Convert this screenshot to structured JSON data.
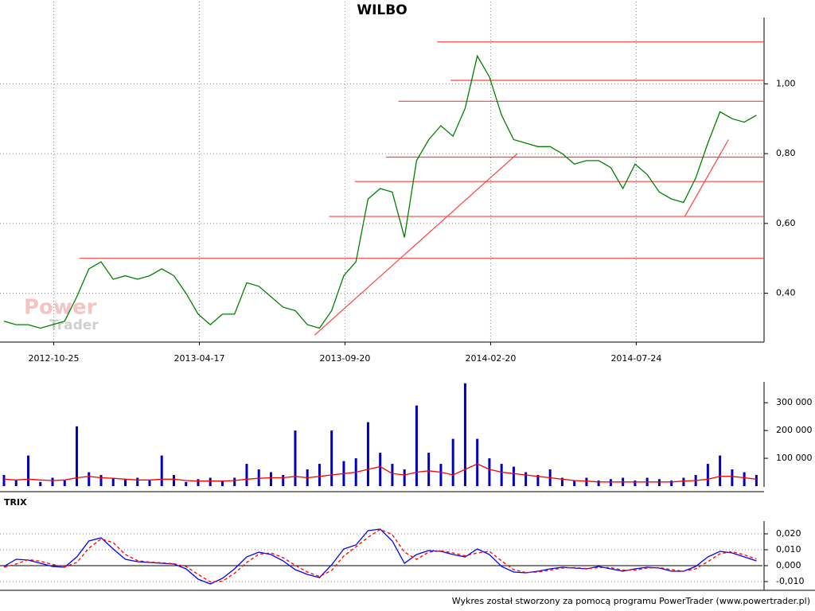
{
  "chart_data": [
    {
      "type": "line",
      "title": "WILBO",
      "watermark": [
        "Power",
        "Trader"
      ],
      "x": [
        0,
        10,
        20,
        30,
        40,
        50,
        60,
        70,
        80,
        90,
        100,
        110,
        120,
        130,
        140,
        150,
        160,
        170,
        180,
        190,
        200,
        210,
        220,
        230,
        240,
        250,
        260,
        270,
        280,
        290,
        300,
        310,
        320,
        330,
        340,
        350,
        360,
        370,
        380,
        390,
        400,
        410,
        420,
        430,
        440,
        450,
        460,
        470,
        480,
        490,
        500,
        510,
        520,
        530,
        540,
        550,
        560,
        570,
        580,
        590,
        600,
        610,
        620
      ],
      "xlim": [
        0,
        625
      ],
      "xticks": [
        {
          "value": 41,
          "label": "2012-10-25"
        },
        {
          "value": 161,
          "label": "2013-04-17"
        },
        {
          "value": 281,
          "label": "2013-09-20"
        },
        {
          "value": 401,
          "label": "2014-02-20"
        },
        {
          "value": 521,
          "label": "2014-07-24"
        }
      ],
      "ylim": [
        0.26,
        1.19
      ],
      "yticks": [
        {
          "value": 0.4,
          "label": "0,40"
        },
        {
          "value": 0.6,
          "label": "0,60"
        },
        {
          "value": 0.8,
          "label": "0,80"
        },
        {
          "value": 1.0,
          "label": "1,00"
        }
      ],
      "grid": true,
      "series": [
        {
          "color": "#008000",
          "values": [
            0.32,
            0.31,
            0.31,
            0.3,
            0.31,
            0.32,
            0.39,
            0.47,
            0.49,
            0.44,
            0.45,
            0.44,
            0.45,
            0.47,
            0.45,
            0.4,
            0.34,
            0.31,
            0.34,
            0.34,
            0.43,
            0.42,
            0.39,
            0.36,
            0.35,
            0.31,
            0.3,
            0.35,
            0.45,
            0.49,
            0.67,
            0.7,
            0.69,
            0.56,
            0.78,
            0.84,
            0.88,
            0.85,
            0.93,
            1.08,
            1.02,
            0.91,
            0.84,
            0.83,
            0.82,
            0.82,
            0.8,
            0.77,
            0.78,
            0.78,
            0.76,
            0.7,
            0.77,
            0.74,
            0.69,
            0.67,
            0.66,
            0.73,
            0.83,
            0.92,
            0.9,
            0.89,
            0.91
          ]
        }
      ],
      "level_color": "#ff4040",
      "levels": [
        {
          "value": 1.12,
          "x_start": 357
        },
        {
          "value": 1.01,
          "x_start": 368
        },
        {
          "value": 0.95,
          "x_start": 325
        },
        {
          "value": 0.79,
          "x_start": 315
        },
        {
          "value": 0.72,
          "x_start": 289
        },
        {
          "value": 0.62,
          "x_start": 268
        },
        {
          "value": 0.5,
          "x_start": 62
        }
      ],
      "trend_lines": [
        {
          "x": [
            256,
            423
          ],
          "values": [
            0.28,
            0.8
          ]
        },
        {
          "x": [
            561,
            597
          ],
          "values": [
            0.62,
            0.84
          ]
        }
      ]
    },
    {
      "type": "bar",
      "x": [
        0,
        10,
        20,
        30,
        40,
        50,
        60,
        70,
        80,
        90,
        100,
        110,
        120,
        130,
        140,
        150,
        160,
        170,
        180,
        190,
        200,
        210,
        220,
        230,
        240,
        250,
        260,
        270,
        280,
        290,
        300,
        310,
        320,
        330,
        340,
        350,
        360,
        370,
        380,
        390,
        400,
        410,
        420,
        430,
        440,
        450,
        460,
        470,
        480,
        490,
        500,
        510,
        520,
        530,
        540,
        550,
        560,
        570,
        580,
        590,
        600,
        610,
        620
      ],
      "xlim": [
        0,
        625
      ],
      "ylim": [
        0,
        375000
      ],
      "yticks": [
        {
          "value": 100000,
          "label": "100 000"
        },
        {
          "value": 200000,
          "label": "200 000"
        },
        {
          "value": 300000,
          "label": "300 000"
        }
      ],
      "series": [
        {
          "type": "bar",
          "color": "#0000c0",
          "values": [
            40000,
            20000,
            110000,
            15000,
            30000,
            20000,
            215000,
            50000,
            40000,
            30000,
            25000,
            30000,
            20000,
            110000,
            40000,
            15000,
            25000,
            30000,
            20000,
            30000,
            80000,
            60000,
            50000,
            40000,
            200000,
            60000,
            80000,
            200000,
            90000,
            100000,
            230000,
            120000,
            80000,
            60000,
            290000,
            120000,
            80000,
            170000,
            370000,
            170000,
            100000,
            80000,
            70000,
            50000,
            40000,
            60000,
            30000,
            20000,
            30000,
            20000,
            25000,
            30000,
            20000,
            30000,
            25000,
            20000,
            30000,
            40000,
            80000,
            110000,
            60000,
            50000,
            40000
          ]
        },
        {
          "type": "line",
          "color": "#ff0000",
          "values": [
            25000,
            22000,
            25000,
            22000,
            20000,
            22000,
            30000,
            35000,
            30000,
            28000,
            25000,
            22000,
            22000,
            25000,
            25000,
            20000,
            18000,
            18000,
            18000,
            20000,
            25000,
            28000,
            30000,
            30000,
            35000,
            30000,
            35000,
            40000,
            45000,
            50000,
            60000,
            70000,
            45000,
            40000,
            50000,
            55000,
            50000,
            40000,
            60000,
            80000,
            60000,
            50000,
            45000,
            40000,
            35000,
            30000,
            25000,
            20000,
            18000,
            15000,
            15000,
            15000,
            15000,
            15000,
            15000,
            15000,
            18000,
            20000,
            25000,
            35000,
            35000,
            30000,
            25000
          ]
        }
      ]
    },
    {
      "type": "line",
      "title": "TRIX",
      "x": [
        0,
        10,
        20,
        30,
        40,
        50,
        60,
        70,
        80,
        90,
        100,
        110,
        120,
        130,
        140,
        150,
        160,
        170,
        180,
        190,
        200,
        210,
        220,
        230,
        240,
        250,
        260,
        270,
        280,
        290,
        300,
        310,
        320,
        330,
        340,
        350,
        360,
        370,
        380,
        390,
        400,
        410,
        420,
        430,
        440,
        450,
        460,
        470,
        480,
        490,
        500,
        510,
        520,
        530,
        540,
        550,
        560,
        570,
        580,
        590,
        600,
        610,
        620
      ],
      "xlim": [
        0,
        625
      ],
      "ylim": [
        -0.0155,
        0.028
      ],
      "yticks": [
        {
          "value": -0.01,
          "label": "-0,010"
        },
        {
          "value": 0,
          "label": "0,000"
        },
        {
          "value": 0.01,
          "label": "0,010"
        },
        {
          "value": 0.02,
          "label": "0,020"
        }
      ],
      "grid": true,
      "series": [
        {
          "color": "#0000ff",
          "values": [
            -0.0005,
            0.004,
            0.0035,
            0.0015,
            -0.0005,
            -0.001,
            0.0055,
            0.0155,
            0.0175,
            0.0105,
            0.004,
            0.0025,
            0.002,
            0.0015,
            0.001,
            -0.002,
            -0.0085,
            -0.0115,
            -0.008,
            -0.002,
            0.0055,
            0.0085,
            0.007,
            0.003,
            -0.0025,
            -0.0055,
            -0.0075,
            0.0005,
            0.0105,
            0.013,
            0.022,
            0.023,
            0.0155,
            0.0015,
            0.007,
            0.0095,
            0.009,
            0.007,
            0.0055,
            0.0105,
            0.007,
            -0.0005,
            -0.004,
            -0.0045,
            -0.0035,
            -0.002,
            -0.001,
            -0.0015,
            -0.002,
            -0.0005,
            -0.002,
            -0.0035,
            -0.002,
            -0.001,
            -0.0015,
            -0.0035,
            -0.0035,
            -0.0005,
            0.0055,
            0.009,
            0.008,
            0.0055,
            0.003
          ]
        },
        {
          "color": "#ff0000",
          "dashed": true,
          "values": [
            -0.001,
            0.001,
            0.0038,
            0.0028,
            0.0008,
            -0.0008,
            0.002,
            0.011,
            0.0168,
            0.0145,
            0.007,
            0.0032,
            0.0022,
            0.0018,
            0.0012,
            -0.0005,
            -0.0055,
            -0.0102,
            -0.0098,
            -0.0048,
            0.002,
            0.0072,
            0.008,
            0.005,
            0.0002,
            -0.004,
            -0.0068,
            -0.003,
            0.006,
            0.0118,
            0.0178,
            0.0228,
            0.0195,
            0.0085,
            0.004,
            0.0085,
            0.0093,
            0.008,
            0.0062,
            0.008,
            0.009,
            0.003,
            -0.0025,
            -0.0043,
            -0.004,
            -0.0028,
            -0.0015,
            -0.0012,
            -0.0018,
            -0.0012,
            -0.0012,
            -0.0028,
            -0.0028,
            -0.0015,
            -0.0012,
            -0.0025,
            -0.0035,
            -0.002,
            0.0025,
            0.0075,
            0.0088,
            0.0068,
            0.0042
          ]
        }
      ]
    }
  ],
  "footer": "Wykres został stworzony za pomocą programu PowerTrader (www.powertrader.pl)"
}
